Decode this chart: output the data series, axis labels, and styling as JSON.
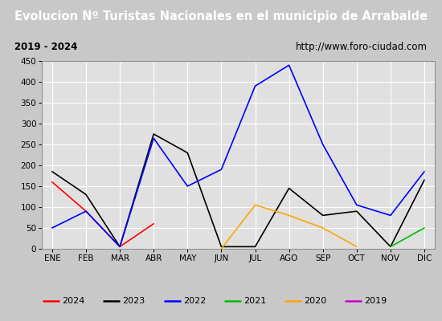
{
  "title": "Evolucion Nº Turistas Nacionales en el municipio de Arrabalde",
  "subtitle_left": "2019 - 2024",
  "subtitle_right": "http://www.foro-ciudad.com",
  "months": [
    "ENE",
    "FEB",
    "MAR",
    "ABR",
    "MAY",
    "JUN",
    "JUL",
    "AGO",
    "SEP",
    "OCT",
    "NOV",
    "DIC"
  ],
  "series": {
    "2024": {
      "color": "#ff0000",
      "data": [
        160,
        90,
        5,
        60,
        null,
        null,
        null,
        null,
        null,
        null,
        null,
        null
      ]
    },
    "2023": {
      "color": "#000000",
      "data": [
        185,
        130,
        5,
        275,
        230,
        5,
        5,
        145,
        80,
        90,
        5,
        165
      ]
    },
    "2022": {
      "color": "#0000ff",
      "data": [
        50,
        90,
        5,
        265,
        150,
        190,
        390,
        440,
        250,
        105,
        80,
        185
      ]
    },
    "2021": {
      "color": "#00bb00",
      "data": [
        null,
        null,
        null,
        null,
        null,
        null,
        null,
        null,
        null,
        null,
        5,
        50
      ]
    },
    "2020": {
      "color": "#ffa500",
      "data": [
        null,
        null,
        null,
        null,
        null,
        0,
        105,
        80,
        50,
        5,
        null,
        null
      ]
    },
    "2019": {
      "color": "#cc00cc",
      "data": [
        null,
        null,
        null,
        null,
        null,
        null,
        null,
        null,
        null,
        null,
        null,
        null
      ]
    }
  },
  "ylim": [
    0,
    450
  ],
  "yticks": [
    0,
    50,
    100,
    150,
    200,
    250,
    300,
    350,
    400,
    450
  ],
  "title_bg_color": "#4e7fc4",
  "title_text_color": "#ffffff",
  "header_bg_color": "#ffffff",
  "outer_bg_color": "#c8c8c8",
  "plot_bg_color": "#e0e0e0",
  "grid_color": "#ffffff",
  "title_fontsize": 10.5,
  "subtitle_fontsize": 8.5,
  "tick_fontsize": 7.5,
  "legend_fontsize": 8
}
